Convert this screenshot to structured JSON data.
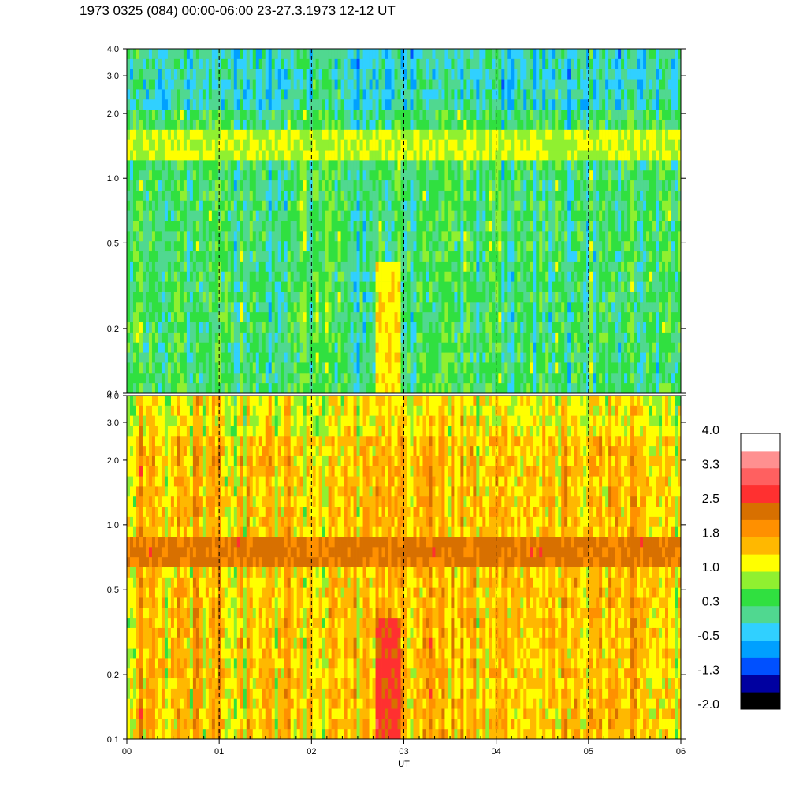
{
  "title": "1973 0325 (084) 00:00-06:00 23-27.3.1973  12-12 UT",
  "chart_data": {
    "type": "heatmap",
    "x_axis": {
      "label": "UT",
      "range": [
        0,
        6
      ],
      "tick_values": [
        0,
        1,
        2,
        3,
        4,
        5,
        6
      ],
      "tick_labels": [
        "00",
        "01",
        "02",
        "03",
        "04",
        "05",
        "06"
      ]
    },
    "panels": [
      {
        "id": "upper",
        "y_axis": {
          "scale": "log",
          "range": [
            0.1,
            4.0
          ],
          "tick_values": [
            0.1,
            0.2,
            0.5,
            1.0,
            2.0,
            3.0,
            4.0
          ],
          "tick_labels": [
            "0.1",
            "0.2",
            "0.5",
            "1.0",
            "2.0",
            "3.0",
            "4.0"
          ]
        },
        "dominant_level": 0.3,
        "features": [
          {
            "description_level": 1.0,
            "y": 1.5,
            "x": [
              0,
              6
            ]
          },
          {
            "description_level": 1.3,
            "y": [
              0.1,
              0.4
            ],
            "x": [
              2.7,
              2.95
            ]
          }
        ]
      },
      {
        "id": "lower",
        "y_axis": {
          "scale": "log",
          "range": [
            0.1,
            4.0
          ],
          "tick_values": [
            0.1,
            0.2,
            0.5,
            1.0,
            2.0,
            3.0,
            4.0
          ],
          "tick_labels": [
            "0.1",
            "0.2",
            "0.5",
            "1.0",
            "2.0",
            "3.0",
            "4.0"
          ]
        },
        "dominant_level": 1.5,
        "features": [
          {
            "description_level": 2.2,
            "y": 0.75,
            "x": [
              0,
              6
            ]
          },
          {
            "description_level": 2.6,
            "y": [
              0.1,
              0.35
            ],
            "x": [
              2.7,
              2.95
            ]
          }
        ]
      }
    ],
    "dashed_lines_x": [
      1,
      2,
      3,
      4,
      5
    ],
    "colorbar": {
      "labels": [
        "4.0",
        "3.3",
        "2.5",
        "1.8",
        "1.0",
        "0.3",
        "-0.5",
        "-1.3",
        "-2.0"
      ],
      "range": [
        -2.0,
        4.0
      ],
      "colors": [
        "#000000",
        "#0000a0",
        "#0050ff",
        "#00a0ff",
        "#30d0ff",
        "#50d890",
        "#30e040",
        "#90f030",
        "#ffff00",
        "#ffb800",
        "#ff9000",
        "#d87000",
        "#ff3030",
        "#ff6060",
        "#ff9090",
        "#ffffff"
      ]
    }
  }
}
